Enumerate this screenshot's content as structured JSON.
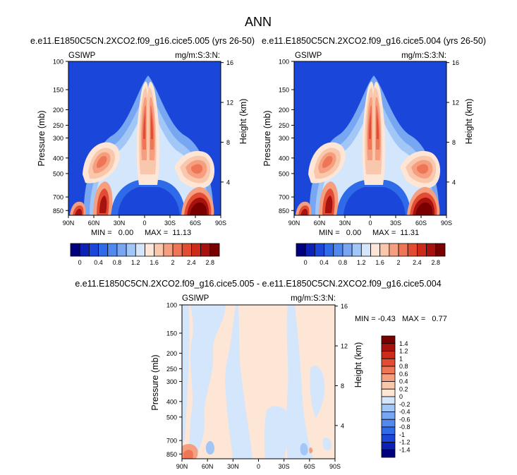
{
  "figure": {
    "title": "ANN",
    "palette": [
      "#00007f",
      "#0c22b4",
      "#1a47d9",
      "#2f6ae8",
      "#5189ee",
      "#77a7f2",
      "#a2c7f7",
      "#d3e6fb",
      "#fde6d6",
      "#f9c7ab",
      "#f59f80",
      "#ee7556",
      "#e24c33",
      "#cc2a1a",
      "#a8120e",
      "#7a0000"
    ]
  },
  "chart_data": [
    {
      "type": "heatmap",
      "title": "e.e11.E1850C5CN.2XCO2.f09_g16.cice5.005 (yrs 26-50)",
      "left_label": "GSIWP",
      "right_label": "mg/m:S:3:N:",
      "xlabel": "",
      "ylabel": "Pressure (mb)",
      "y2label": "Height (km)",
      "xticks": [
        "90N",
        "60N",
        "30N",
        "0",
        "30S",
        "60S",
        "90S"
      ],
      "yticks": [
        "100",
        "150",
        "200",
        "250",
        "300",
        "400",
        "500",
        "700",
        "850"
      ],
      "y2ticks": [
        "16",
        "12",
        "8",
        "4"
      ],
      "min_text": "MIN =   0.00",
      "max_text": "MAX =  11.13",
      "colorbar_labels": [
        "0",
        "0.4",
        "0.8",
        "1.2",
        "1.6",
        "2",
        "2.4",
        "2.8"
      ]
    },
    {
      "type": "heatmap",
      "title": "e.e11.E1850C5CN.2XCO2.f09_g16.cice5.004 (yrs 26-50)",
      "left_label": "GSIWP",
      "right_label": "mg/m:S:3:N:",
      "xlabel": "",
      "ylabel": "Pressure (mb)",
      "y2label": "Height (km)",
      "xticks": [
        "90N",
        "60N",
        "30N",
        "0",
        "30S",
        "60S",
        "90S"
      ],
      "yticks": [
        "100",
        "150",
        "200",
        "250",
        "300",
        "400",
        "500",
        "700",
        "850"
      ],
      "y2ticks": [
        "16",
        "12",
        "8",
        "4"
      ],
      "min_text": "MIN =   0.00",
      "max_text": "MAX =  11.31",
      "colorbar_labels": [
        "0",
        "0.4",
        "0.8",
        "1.2",
        "1.6",
        "2",
        "2.4",
        "2.8"
      ]
    },
    {
      "type": "heatmap",
      "title": "e.e11.E1850C5CN.2XCO2.f09_g16.cice5.005 - e.e11.E1850C5CN.2XCO2.f09_g16.cice5.004",
      "left_label": "GSIWP",
      "right_label": "mg/m:S:3:N:",
      "xlabel": "",
      "ylabel": "Pressure (mb)",
      "y2label": "Height (km)",
      "xticks": [
        "90N",
        "60N",
        "30N",
        "0",
        "30S",
        "60S",
        "90S"
      ],
      "yticks": [
        "100",
        "150",
        "200",
        "250",
        "300",
        "400",
        "500",
        "700",
        "850"
      ],
      "y2ticks": [
        "16",
        "12",
        "8",
        "4"
      ],
      "minmax_text": "MIN = -0.43   MAX =   0.77",
      "colorbar_labels": [
        "1.4",
        "1.2",
        "1",
        "0.8",
        "0.6",
        "0.4",
        "0.2",
        "0",
        "-0.2",
        "-0.4",
        "-0.6",
        "-0.8",
        "-1",
        "-1.2",
        "-1.4"
      ]
    }
  ]
}
